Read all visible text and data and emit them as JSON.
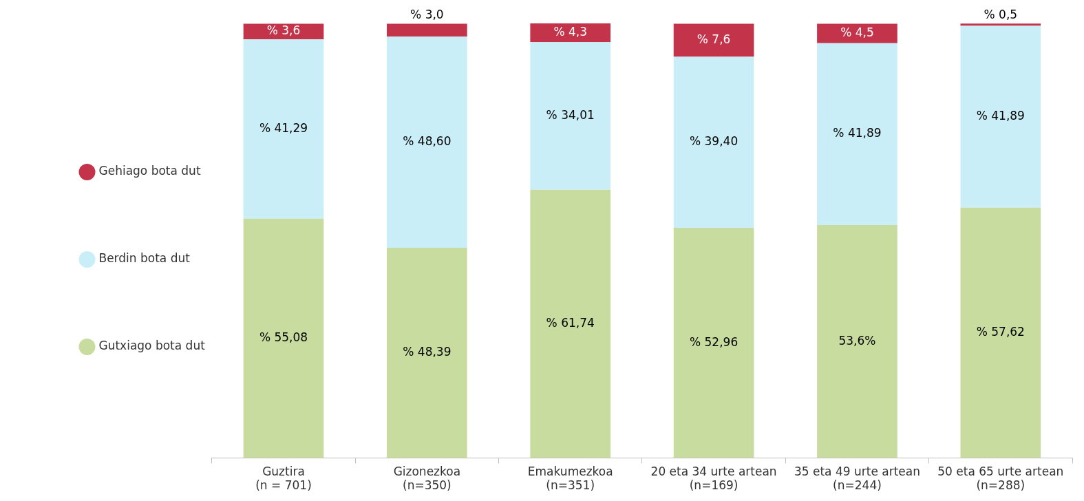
{
  "chart_data": {
    "type": "bar",
    "stacked": true,
    "legend": "left",
    "marker": "circle",
    "categories": [
      "Guztira\n(n = 701)",
      "Gizonezkoa\n(n=350)",
      "Emakumezkoa\n(n=351)",
      "20 eta 34 urte artean\n(n=169)",
      "35 eta 49 urte artean\n(n=244)",
      "50 eta 65 urte artean\n(n=288)"
    ],
    "series": [
      {
        "name": "Gutxiago bota dut",
        "color": "#c7dc9e",
        "values": [
          55.08,
          48.39,
          61.74,
          52.96,
          53.6,
          57.62
        ],
        "value_labels": [
          "% 55,08",
          "% 48,39",
          "% 61,74",
          "% 52,96",
          "53,6%",
          "% 57,62"
        ]
      },
      {
        "name": "Berdin bota dut",
        "color": "#c9eef7",
        "values": [
          41.29,
          48.6,
          34.01,
          39.4,
          41.89,
          41.89
        ],
        "value_labels": [
          "% 41,29",
          "% 48,60",
          "% 34,01",
          "% 39,40",
          "% 41,89",
          "% 41,89"
        ]
      },
      {
        "name": "Gehiago bota dut",
        "color": "#c3344b",
        "values": [
          3.6,
          3.0,
          4.3,
          7.6,
          4.5,
          0.5
        ],
        "value_labels": [
          "% 3,6",
          "% 3,0",
          "% 4,3",
          "% 7,6",
          "% 4,5",
          "% 0,5"
        ]
      }
    ]
  }
}
